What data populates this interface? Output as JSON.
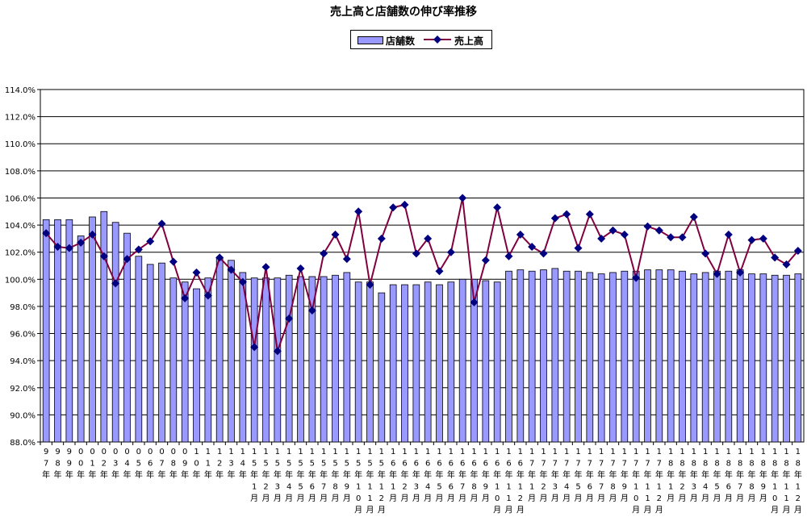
{
  "chart_data": {
    "type": "bar",
    "title": "売上高と店舗数の伸び率推移",
    "xlabel": "",
    "ylabel": "",
    "ylim": [
      88,
      114
    ],
    "y_ticks": [
      "88.0%",
      "90.0%",
      "92.0%",
      "94.0%",
      "96.0%",
      "98.0%",
      "100.0%",
      "102.0%",
      "104.0%",
      "106.0%",
      "108.0%",
      "110.0%",
      "112.0%",
      "114.0%"
    ],
    "grid": true,
    "legend_position": "top-center",
    "colors": {
      "bar": "#9999ff",
      "line": "#800040",
      "marker": "#000080"
    },
    "categories": [
      "97年",
      "98年",
      "99年",
      "00年",
      "01年",
      "02年",
      "03年",
      "04年",
      "05年",
      "06年",
      "07年",
      "08年",
      "09年",
      "10年",
      "11年",
      "12年",
      "13年",
      "14年",
      "15年1月",
      "15年2月",
      "15年3月",
      "15年4月",
      "15年5月",
      "15年6月",
      "15年7月",
      "15年8月",
      "15年9月",
      "15年10月",
      "15年11月",
      "15年12月",
      "16年1月",
      "16年2月",
      "16年3月",
      "16年4月",
      "16年5月",
      "16年6月",
      "16年7月",
      "16年8月",
      "16年9月",
      "16年10月",
      "16年11月",
      "16年12月",
      "17年1月",
      "17年2月",
      "17年3月",
      "17年4月",
      "17年5月",
      "17年6月",
      "17年7月",
      "17年8月",
      "17年9月",
      "17年10月",
      "17年11月",
      "17年12月",
      "18年1月",
      "18年2月",
      "18年3月",
      "18年4月",
      "18年5月",
      "18年6月",
      "18年7月",
      "18年8月",
      "18年9月",
      "18年10月",
      "18年11月",
      "18年12月"
    ],
    "category_label_columns": [
      [
        "9",
        "7",
        "年"
      ],
      [
        "9",
        "8",
        "年"
      ],
      [
        "9",
        "9",
        "年"
      ],
      [
        "0",
        "0",
        "年"
      ],
      [
        "0",
        "1",
        "年"
      ],
      [
        "0",
        "2",
        "年"
      ],
      [
        "0",
        "3",
        "年"
      ],
      [
        "0",
        "4",
        "年"
      ],
      [
        "0",
        "5",
        "年"
      ],
      [
        "0",
        "6",
        "年"
      ],
      [
        "0",
        "7",
        "年"
      ],
      [
        "0",
        "8",
        "年"
      ],
      [
        "0",
        "9",
        "年"
      ],
      [
        "1",
        "0",
        "年"
      ],
      [
        "1",
        "1",
        "年"
      ],
      [
        "1",
        "2",
        "年"
      ],
      [
        "1",
        "3",
        "年"
      ],
      [
        "1",
        "4",
        "年"
      ],
      [
        "1",
        "5",
        "年",
        "1",
        "月"
      ],
      [
        "1",
        "5",
        "年",
        "2",
        "月"
      ],
      [
        "1",
        "5",
        "年",
        "3",
        "月"
      ],
      [
        "1",
        "5",
        "年",
        "4",
        "月"
      ],
      [
        "1",
        "5",
        "年",
        "5",
        "月"
      ],
      [
        "1",
        "5",
        "年",
        "6",
        "月"
      ],
      [
        "1",
        "5",
        "年",
        "7",
        "月"
      ],
      [
        "1",
        "5",
        "年",
        "8",
        "月"
      ],
      [
        "1",
        "5",
        "年",
        "9",
        "月"
      ],
      [
        "1",
        "5",
        "年",
        "1",
        "0",
        "月"
      ],
      [
        "1",
        "5",
        "年",
        "1",
        "1",
        "月"
      ],
      [
        "1",
        "5",
        "年",
        "1",
        "2",
        "月"
      ],
      [
        "1",
        "6",
        "年",
        "1",
        "月"
      ],
      [
        "1",
        "6",
        "年",
        "2",
        "月"
      ],
      [
        "1",
        "6",
        "年",
        "3",
        "月"
      ],
      [
        "1",
        "6",
        "年",
        "4",
        "月"
      ],
      [
        "1",
        "6",
        "年",
        "5",
        "月"
      ],
      [
        "1",
        "6",
        "年",
        "6",
        "月"
      ],
      [
        "1",
        "6",
        "年",
        "7",
        "月"
      ],
      [
        "1",
        "6",
        "年",
        "8",
        "月"
      ],
      [
        "1",
        "6",
        "年",
        "9",
        "月"
      ],
      [
        "1",
        "6",
        "年",
        "1",
        "0",
        "月"
      ],
      [
        "1",
        "6",
        "年",
        "1",
        "1",
        "月"
      ],
      [
        "1",
        "6",
        "年",
        "1",
        "2",
        "月"
      ],
      [
        "1",
        "7",
        "年",
        "1",
        "月"
      ],
      [
        "1",
        "7",
        "年",
        "2",
        "月"
      ],
      [
        "1",
        "7",
        "年",
        "3",
        "月"
      ],
      [
        "1",
        "7",
        "年",
        "4",
        "月"
      ],
      [
        "1",
        "7",
        "年",
        "5",
        "月"
      ],
      [
        "1",
        "7",
        "年",
        "6",
        "月"
      ],
      [
        "1",
        "7",
        "年",
        "7",
        "月"
      ],
      [
        "1",
        "7",
        "年",
        "8",
        "月"
      ],
      [
        "1",
        "7",
        "年",
        "9",
        "月"
      ],
      [
        "1",
        "7",
        "年",
        "1",
        "0",
        "月"
      ],
      [
        "1",
        "7",
        "年",
        "1",
        "1",
        "月"
      ],
      [
        "1",
        "7",
        "年",
        "1",
        "2",
        "月"
      ],
      [
        "1",
        "8",
        "年",
        "1",
        "月"
      ],
      [
        "1",
        "8",
        "年",
        "2",
        "月"
      ],
      [
        "1",
        "8",
        "年",
        "3",
        "月"
      ],
      [
        "1",
        "8",
        "年",
        "4",
        "月"
      ],
      [
        "1",
        "8",
        "年",
        "5",
        "月"
      ],
      [
        "1",
        "8",
        "年",
        "6",
        "月"
      ],
      [
        "1",
        "8",
        "年",
        "7",
        "月"
      ],
      [
        "1",
        "8",
        "年",
        "8",
        "月"
      ],
      [
        "1",
        "8",
        "年",
        "9",
        "月"
      ],
      [
        "1",
        "8",
        "年",
        "1",
        "0",
        "月"
      ],
      [
        "1",
        "8",
        "年",
        "1",
        "1",
        "月"
      ],
      [
        "1",
        "8",
        "年",
        "1",
        "2",
        "月"
      ]
    ],
    "series": [
      {
        "name": "店舗数",
        "type": "bar",
        "values": [
          104.4,
          104.4,
          104.4,
          103.2,
          104.6,
          105.0,
          104.2,
          103.4,
          101.7,
          101.1,
          101.2,
          100.1,
          99.8,
          99.3,
          100.1,
          101.6,
          101.4,
          100.5,
          100.1,
          100.1,
          100.1,
          100.3,
          100.2,
          100.2,
          100.2,
          100.3,
          100.5,
          99.8,
          99.8,
          99.0,
          99.6,
          99.6,
          99.6,
          99.8,
          99.6,
          99.8,
          100.0,
          100.0,
          99.9,
          99.8,
          100.6,
          100.7,
          100.6,
          100.7,
          100.8,
          100.6,
          100.6,
          100.5,
          100.4,
          100.5,
          100.6,
          100.6,
          100.7,
          100.7,
          100.7,
          100.6,
          100.4,
          100.5,
          100.6,
          100.6,
          100.7,
          100.4,
          100.4,
          100.3,
          100.3,
          100.4
        ]
      },
      {
        "name": "売上高",
        "type": "line",
        "values": [
          103.4,
          102.4,
          102.3,
          102.7,
          103.3,
          101.7,
          99.7,
          101.5,
          102.2,
          102.8,
          104.1,
          101.3,
          98.6,
          100.5,
          98.8,
          101.6,
          100.7,
          99.8,
          95.0,
          100.9,
          94.7,
          97.1,
          100.8,
          97.7,
          101.9,
          103.3,
          101.5,
          105.0,
          99.6,
          103.0,
          105.3,
          105.5,
          101.9,
          103.0,
          100.6,
          102.0,
          106.0,
          98.3,
          101.4,
          105.3,
          101.7,
          103.3,
          102.4,
          101.9,
          104.5,
          104.8,
          102.3,
          104.8,
          103.0,
          103.6,
          103.3,
          100.1,
          103.9,
          103.6,
          103.1,
          103.1,
          104.6,
          101.9,
          100.4,
          103.3,
          100.5,
          102.9,
          103.0,
          101.6,
          101.1,
          102.1
        ]
      }
    ]
  }
}
